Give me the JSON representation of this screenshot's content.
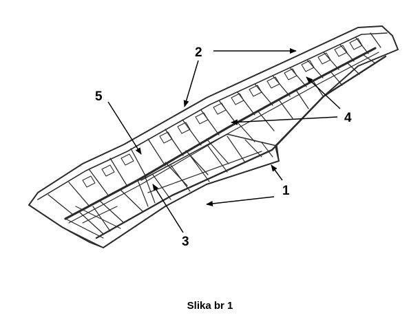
{
  "diagram": {
    "subject": "wing-structure",
    "line_color": "#2b2b2b",
    "callouts": [
      {
        "id": "c1",
        "label": "1"
      },
      {
        "id": "c2",
        "label": "2"
      },
      {
        "id": "c3",
        "label": "3"
      },
      {
        "id": "c4",
        "label": "4"
      },
      {
        "id": "c5",
        "label": "5"
      }
    ]
  },
  "caption": "Slika br 1"
}
